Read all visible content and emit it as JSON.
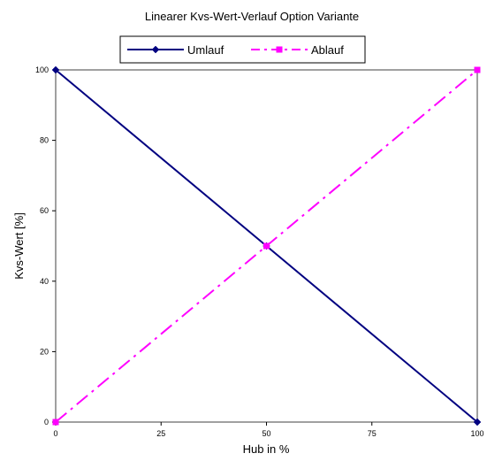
{
  "chart_data": {
    "type": "line",
    "title": "Linearer Kvs-Wert-Verlauf Option Variante",
    "xlabel": "Hub in %",
    "ylabel": "Kvs-Wert [%]",
    "xlim": [
      0,
      100
    ],
    "ylim": [
      0,
      100
    ],
    "x_ticks": [
      0,
      25,
      50,
      75,
      100
    ],
    "y_ticks": [
      0,
      20,
      40,
      60,
      80,
      100
    ],
    "grid": false,
    "legend_position": "top-center",
    "series": [
      {
        "name": "Umlauf",
        "color": "#000080",
        "line_style": "solid",
        "marker": "diamond",
        "points": [
          {
            "x": 0,
            "y": 100
          },
          {
            "x": 50,
            "y": 50
          },
          {
            "x": 100,
            "y": 0
          }
        ]
      },
      {
        "name": "Ablauf",
        "color": "#FF00FF",
        "line_style": "dash-dot",
        "marker": "square",
        "points": [
          {
            "x": 0,
            "y": 0
          },
          {
            "x": 50,
            "y": 50
          },
          {
            "x": 100,
            "y": 100
          }
        ]
      }
    ]
  }
}
